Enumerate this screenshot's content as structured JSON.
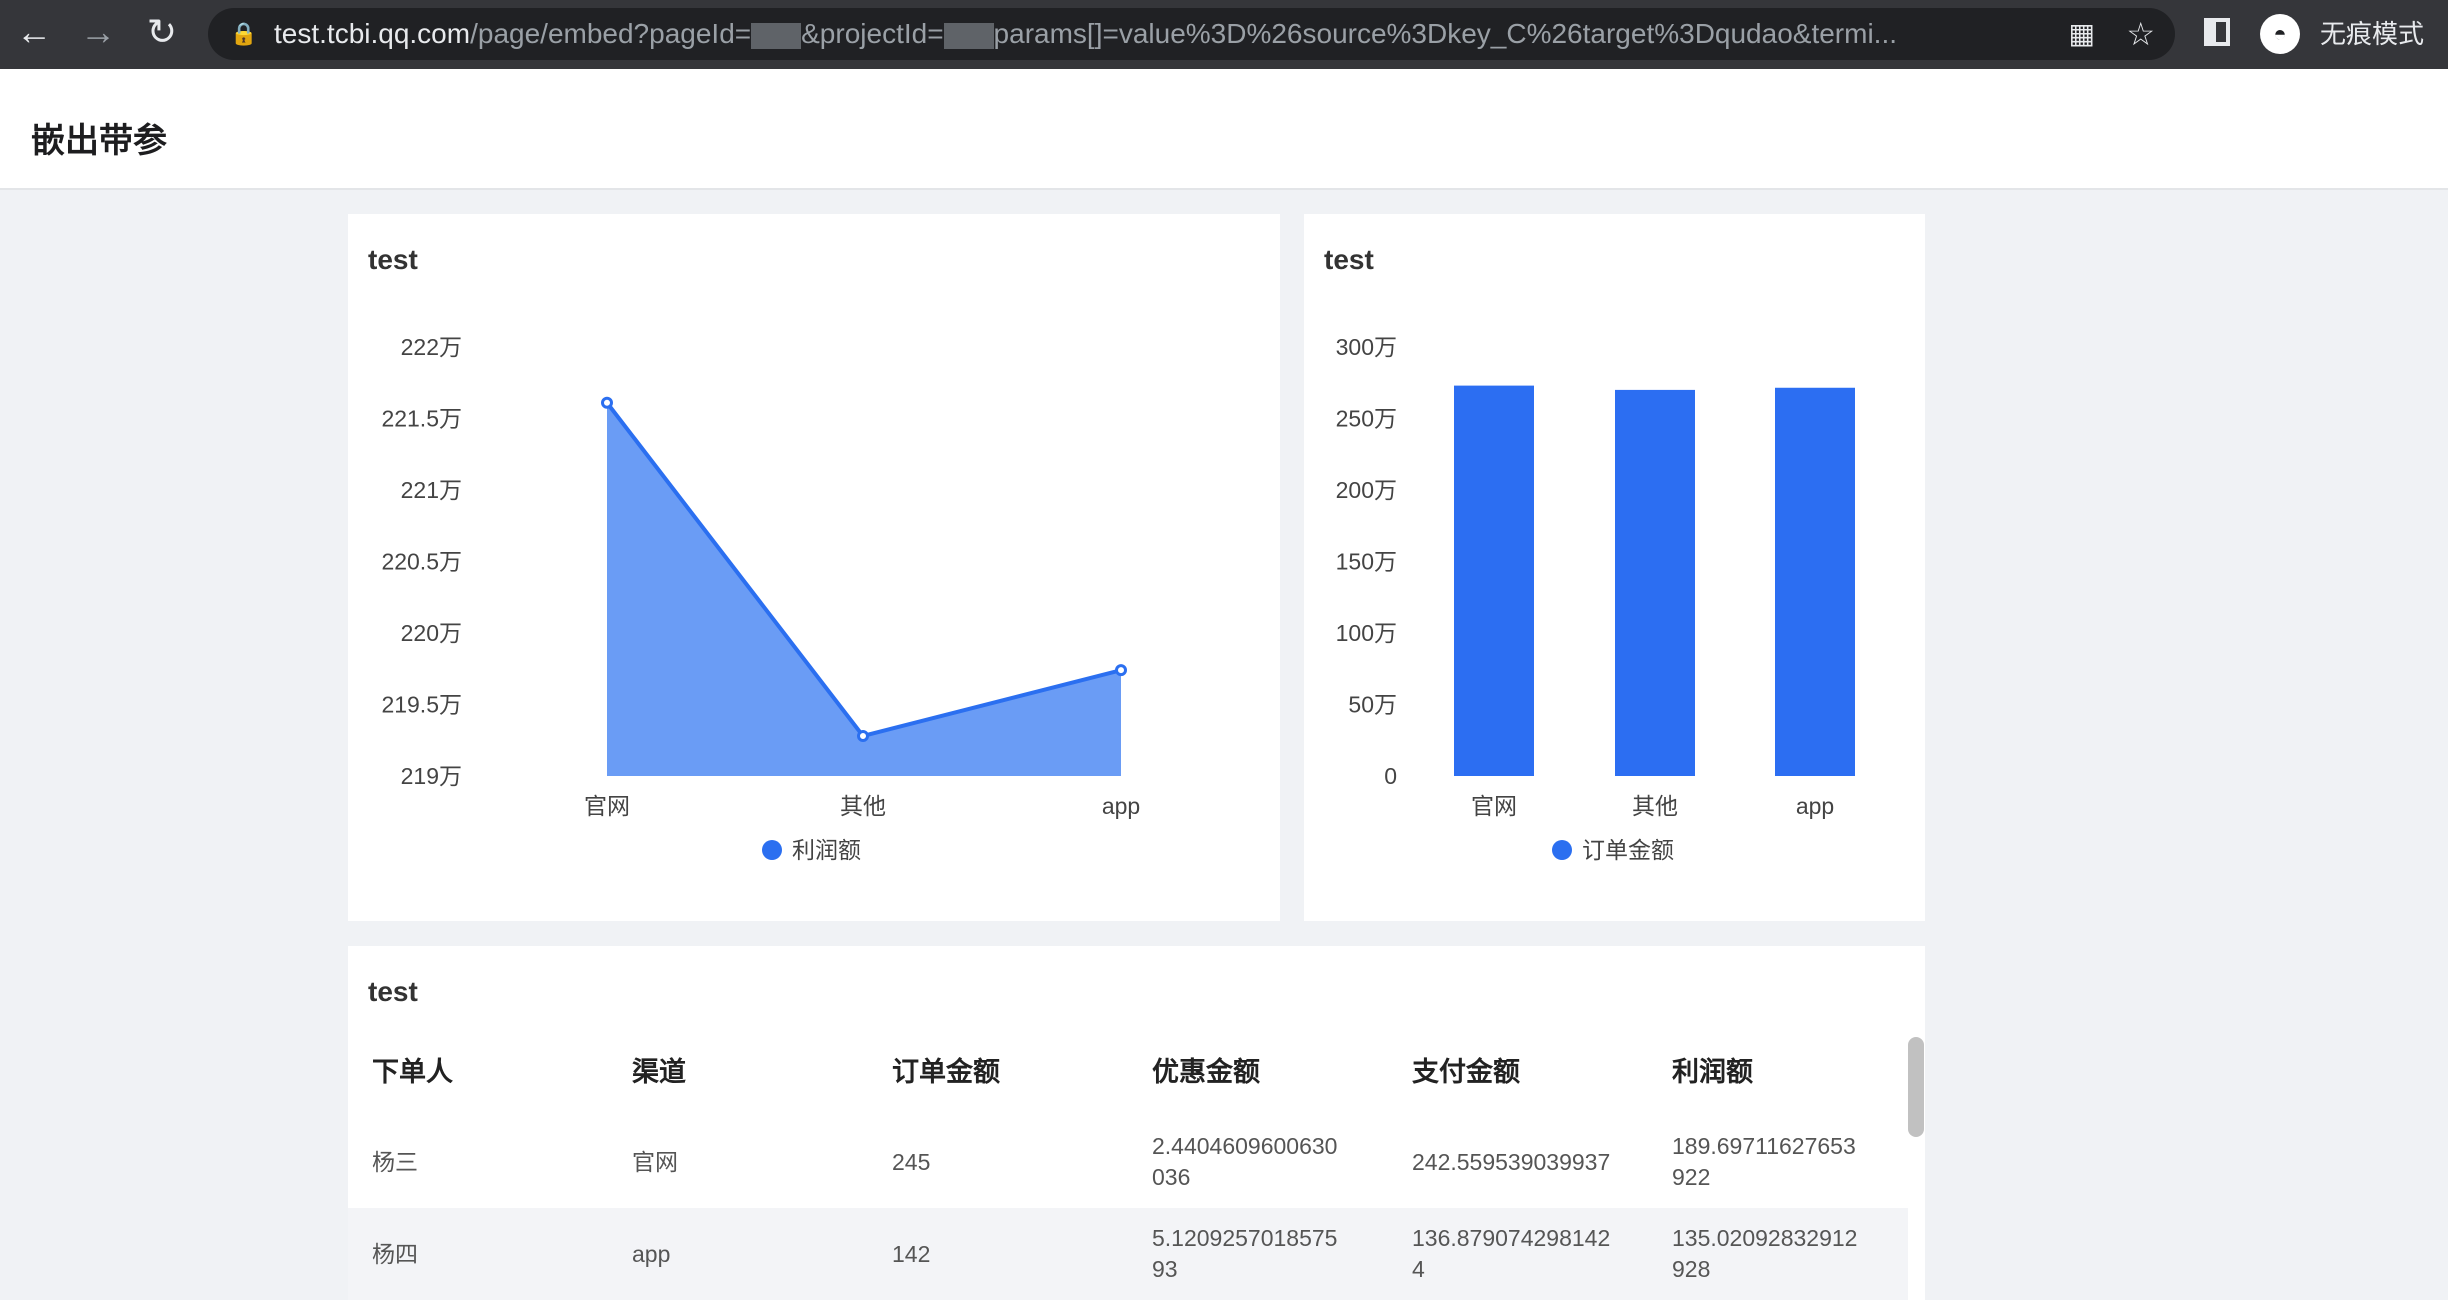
{
  "browser": {
    "url_host": "test.tcbi.qq.com",
    "url_part1": "/page/embed?pageId=",
    "url_part2": "&projectId=",
    "url_part3": "params[]=value%3D%26source%3Dkey_C%26target%3Dqudao&termi...",
    "incognito_label": "无痕模式"
  },
  "page": {
    "title": "嵌出带参"
  },
  "colors": {
    "accent": "#2b6ff0",
    "area_fill": "#6a9cf5",
    "bar": "#2c6ef2"
  },
  "chart_data": [
    {
      "type": "area",
      "title": "test",
      "categories": [
        "官网",
        "其他",
        "app"
      ],
      "series": [
        {
          "name": "利润额",
          "values": [
            221.61,
            219.28,
            219.74
          ]
        }
      ],
      "ylim": [
        219,
        222
      ],
      "yticks": [
        "219万",
        "219.5万",
        "220万",
        "220.5万",
        "221万",
        "221.5万",
        "222万"
      ],
      "ytick_values": [
        219,
        219.5,
        220,
        220.5,
        221,
        221.5,
        222
      ],
      "unit": "万",
      "legend": "bottom"
    },
    {
      "type": "bar",
      "title": "test",
      "categories": [
        "官网",
        "其他",
        "app"
      ],
      "series": [
        {
          "name": "订单金额",
          "values": [
            273,
            270,
            271.5
          ]
        }
      ],
      "ylim": [
        0,
        300
      ],
      "yticks": [
        "0",
        "50万",
        "100万",
        "150万",
        "200万",
        "250万",
        "300万"
      ],
      "ytick_values": [
        0,
        50,
        100,
        150,
        200,
        250,
        300
      ],
      "unit": "万",
      "legend": "bottom"
    }
  ],
  "table": {
    "title": "test",
    "headers": [
      "下单人",
      "渠道",
      "订单金额",
      "优惠金额",
      "支付金额",
      "利润额"
    ],
    "rows": [
      [
        "杨三",
        "官网",
        "245",
        "2.4404609600630036",
        "242.559539039937",
        "189.69711627653922"
      ],
      [
        "杨四",
        "app",
        "142",
        "5.120925701857593",
        "136.8790742981424",
        "135.02092832912928"
      ]
    ]
  }
}
